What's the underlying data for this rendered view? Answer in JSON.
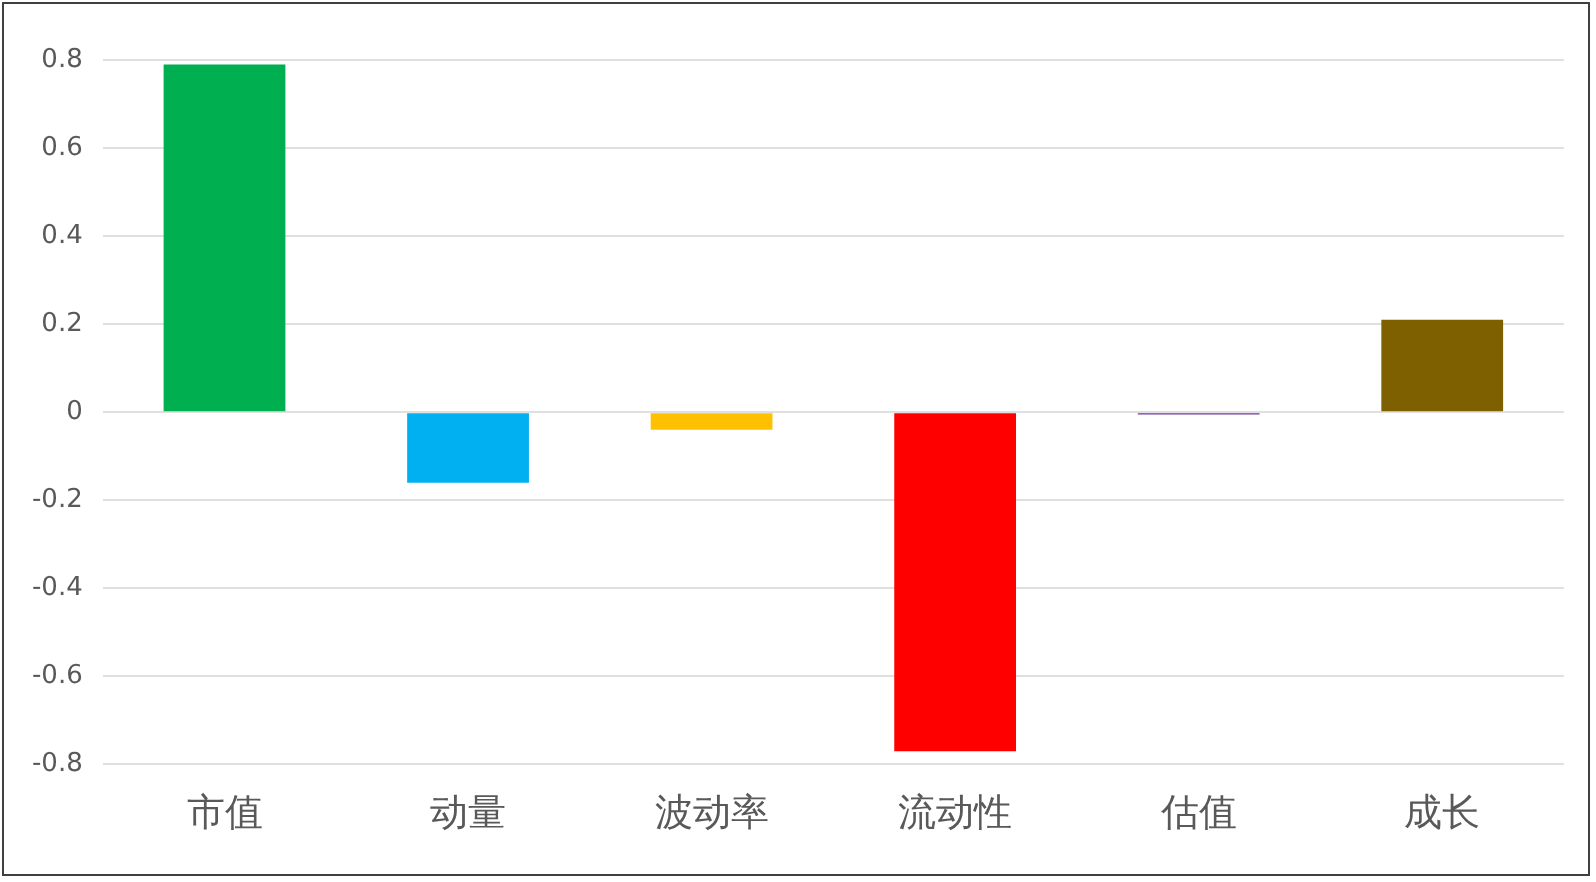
{
  "chart_data": {
    "type": "bar",
    "categories": [
      "市值",
      "动量",
      "波动率",
      "流动性",
      "估值",
      "成长"
    ],
    "values": [
      0.79,
      -0.16,
      -0.04,
      -0.77,
      -0.005,
      0.21
    ],
    "colors": [
      "#00b050",
      "#00b0f0",
      "#ffc000",
      "#ff0000",
      "#7030a0",
      "#7f6000"
    ],
    "ylim": [
      -0.8,
      0.8
    ],
    "yticks": [
      -0.8,
      -0.6,
      -0.4,
      -0.2,
      0,
      0.2,
      0.4,
      0.6,
      0.8
    ],
    "grid": "y",
    "legend": false
  }
}
